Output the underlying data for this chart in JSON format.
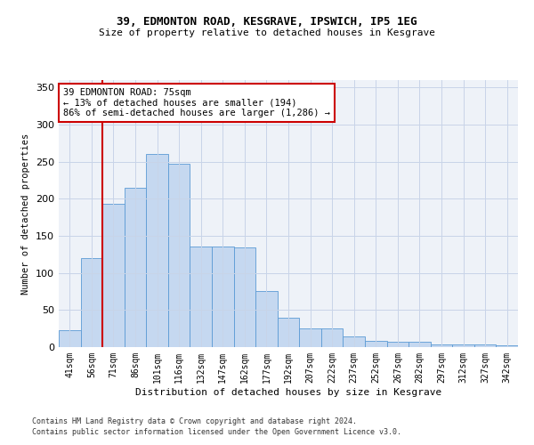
{
  "title1": "39, EDMONTON ROAD, KESGRAVE, IPSWICH, IP5 1EG",
  "title2": "Size of property relative to detached houses in Kesgrave",
  "xlabel": "Distribution of detached houses by size in Kesgrave",
  "ylabel": "Number of detached properties",
  "categories": [
    "41sqm",
    "56sqm",
    "71sqm",
    "86sqm",
    "101sqm",
    "116sqm",
    "132sqm",
    "147sqm",
    "162sqm",
    "177sqm",
    "192sqm",
    "207sqm",
    "222sqm",
    "237sqm",
    "252sqm",
    "267sqm",
    "282sqm",
    "297sqm",
    "312sqm",
    "327sqm",
    "342sqm"
  ],
  "values": [
    23,
    120,
    193,
    215,
    260,
    247,
    136,
    136,
    135,
    76,
    40,
    25,
    25,
    14,
    8,
    7,
    7,
    4,
    4,
    4,
    2
  ],
  "bar_color": "#c5d8f0",
  "bar_edge_color": "#5b9bd5",
  "annotation_text": "39 EDMONTON ROAD: 75sqm\n← 13% of detached houses are smaller (194)\n86% of semi-detached houses are larger (1,286) →",
  "annotation_box_color": "#ffffff",
  "annotation_box_edge": "#cc0000",
  "red_line_color": "#cc0000",
  "footnote1": "Contains HM Land Registry data © Crown copyright and database right 2024.",
  "footnote2": "Contains public sector information licensed under the Open Government Licence v3.0.",
  "ylim": [
    0,
    360
  ],
  "yticks": [
    0,
    50,
    100,
    150,
    200,
    250,
    300,
    350
  ],
  "grid_color": "#c8d4e8",
  "bg_color": "#eef2f8"
}
